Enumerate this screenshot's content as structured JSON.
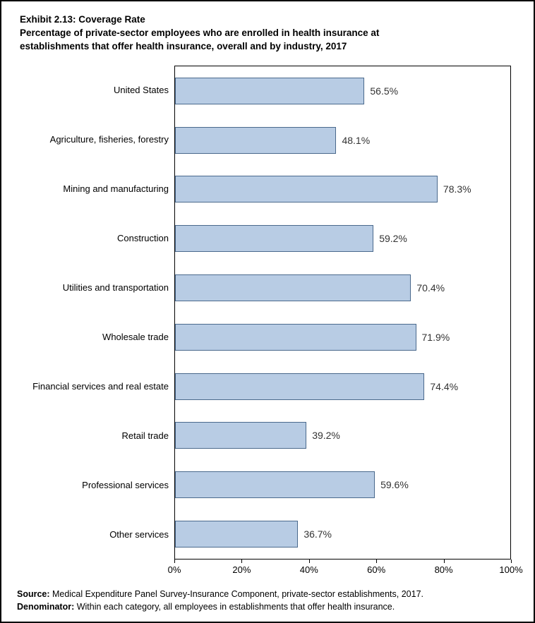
{
  "header": {
    "title": "Exhibit 2.13: Coverage Rate",
    "subtitle": "Percentage of private-sector employees who are enrolled in health insurance at establishments that offer health insurance, overall and by industry, 2017"
  },
  "chart_data": {
    "type": "bar",
    "orientation": "horizontal",
    "categories": [
      "United States",
      "Agriculture, fisheries, forestry",
      "Mining and manufacturing",
      "Construction",
      "Utilities and transportation",
      "Wholesale trade",
      "Financial services and real estate",
      "Retail trade",
      "Professional services",
      "Other services"
    ],
    "values": [
      56.5,
      48.1,
      78.3,
      59.2,
      70.4,
      71.9,
      74.4,
      39.2,
      59.6,
      36.7
    ],
    "value_labels": [
      "56.5%",
      "48.1%",
      "78.3%",
      "59.2%",
      "70.4%",
      "71.9%",
      "74.4%",
      "39.2%",
      "59.6%",
      "36.7%"
    ],
    "xlim": [
      0,
      100
    ],
    "x_tick_values": [
      0,
      20,
      40,
      60,
      80,
      100
    ],
    "x_tick_labels": [
      "0%",
      "20%",
      "40%",
      "60%",
      "80%",
      "100%"
    ],
    "grid": false,
    "legend": "none",
    "bar_fill_color": "#b8cce4",
    "bar_border_color": "#4a698c"
  },
  "footer": {
    "source_label": "Source:",
    "source_text": " Medical Expenditure Panel Survey-Insurance Component, private-sector establishments, 2017.",
    "denominator_label": "Denominator:",
    "denominator_text": " Within each category, all employees in establishments that offer health insurance."
  }
}
